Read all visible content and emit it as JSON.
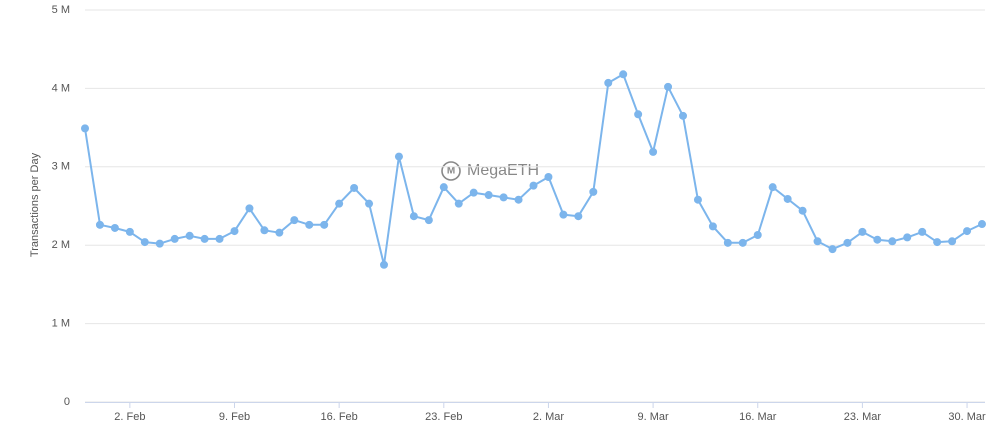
{
  "chart_data": {
    "type": "line",
    "y_label": "Transactions per Day",
    "watermark": "MegaETH",
    "categories": [
      null,
      null,
      null,
      "2. Feb",
      null,
      null,
      null,
      null,
      null,
      null,
      "9. Feb",
      null,
      null,
      null,
      null,
      null,
      null,
      "16. Feb",
      null,
      null,
      null,
      null,
      null,
      null,
      "23. Feb",
      null,
      null,
      null,
      null,
      null,
      null,
      "2. Mar",
      null,
      null,
      null,
      null,
      null,
      null,
      "9. Mar",
      null,
      null,
      null,
      null,
      null,
      null,
      "16. Mar",
      null,
      null,
      null,
      null,
      null,
      null,
      "23. Mar",
      null,
      null,
      null,
      null,
      null,
      null,
      "30. Mar",
      null
    ],
    "series": [
      {
        "name": "Transactions per Day",
        "color": "#7cb5ec",
        "values": [
          3490000,
          2260000,
          2220000,
          2170000,
          2040000,
          2020000,
          2080000,
          2120000,
          2080000,
          2080000,
          2180000,
          2470000,
          2190000,
          2160000,
          2320000,
          2260000,
          2260000,
          2530000,
          2730000,
          2530000,
          1750000,
          3130000,
          2370000,
          2320000,
          2740000,
          2530000,
          2670000,
          2640000,
          2610000,
          2580000,
          2760000,
          2870000,
          2390000,
          2370000,
          2680000,
          4070000,
          4180000,
          3670000,
          3190000,
          4020000,
          3650000,
          2580000,
          2240000,
          2030000,
          2030000,
          2130000,
          2740000,
          2590000,
          2440000,
          2050000,
          1950000,
          2030000,
          2170000,
          2070000,
          2050000,
          2100000,
          2170000,
          2040000,
          2050000,
          2180000,
          2270000
        ]
      }
    ],
    "ylim": [
      0,
      5000000
    ],
    "yticks": [
      0,
      {
        "value": 1000000,
        "label": "1 M"
      },
      {
        "value": 2000000,
        "label": "2 M"
      },
      {
        "value": 3000000,
        "label": "3 M"
      },
      {
        "value": 4000000,
        "label": "4 M"
      },
      {
        "value": 5000000,
        "label": "5 M"
      }
    ],
    "grid": true
  }
}
